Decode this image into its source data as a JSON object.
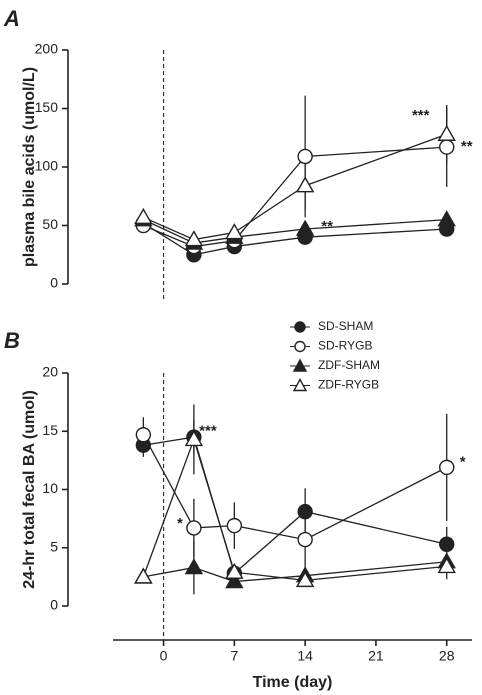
{
  "chart_data": [
    {
      "type": "line",
      "panel_label": "A",
      "y_label": "plasma bile acids (umol/L)",
      "x": [
        -2,
        3,
        7,
        14,
        28
      ],
      "xlim": [
        -5,
        30.5
      ],
      "ylim": [
        0,
        200
      ],
      "yticks": [
        0,
        50,
        100,
        150,
        200
      ],
      "series": [
        {
          "marker": "circle",
          "filled": true,
          "color": "#222",
          "values": [
            52,
            25,
            32,
            40,
            47
          ],
          "errors": [
            null,
            null,
            null,
            null,
            null
          ]
        },
        {
          "marker": "circle",
          "filled": false,
          "color": "#222",
          "values": [
            50,
            32,
            37,
            109,
            117
          ],
          "errors": [
            null,
            null,
            null,
            52,
            34
          ]
        },
        {
          "marker": "triangle",
          "filled": true,
          "color": "#222",
          "values": [
            55,
            35,
            40,
            47,
            55
          ],
          "errors": [
            null,
            null,
            null,
            null,
            null
          ]
        },
        {
          "marker": "triangle",
          "filled": false,
          "color": "#222",
          "values": [
            57,
            38,
            44,
            84,
            128
          ],
          "errors": [
            null,
            null,
            null,
            20,
            25
          ]
        }
      ],
      "annotations": [
        "**",
        "***",
        "**"
      ]
    },
    {
      "type": "line",
      "panel_label": "B",
      "y_label": "24-hr total fecal BA (umol)",
      "x_label": "Time (day)",
      "x": [
        -2,
        3,
        7,
        14,
        28
      ],
      "xlim": [
        -5,
        30.5
      ],
      "xticks": [
        0,
        7,
        14,
        21,
        28
      ],
      "ylim": [
        0,
        20
      ],
      "yticks": [
        0,
        5,
        10,
        15,
        20
      ],
      "series": [
        {
          "name": "SD-SHAM",
          "marker": "circle",
          "filled": true,
          "color": "#222",
          "values": [
            13.8,
            14.5,
            2.8,
            8.1,
            5.3
          ],
          "errors": [
            1.0,
            1.5,
            null,
            2.0,
            1.5
          ]
        },
        {
          "name": "SD-RYGB",
          "marker": "circle",
          "filled": false,
          "color": "#222",
          "values": [
            14.7,
            6.7,
            6.9,
            5.7,
            11.9
          ],
          "errors": [
            1.5,
            2.5,
            2.0,
            2.8,
            4.6
          ]
        },
        {
          "name": "ZDF-SHAM",
          "marker": "triangle",
          "filled": true,
          "color": "#222",
          "values": [
            2.5,
            3.3,
            2.1,
            2.6,
            3.8
          ],
          "errors": [
            null,
            2.3,
            null,
            null,
            1.5
          ]
        },
        {
          "name": "ZDF-RYGB",
          "marker": "triangle",
          "filled": false,
          "color": "#222",
          "values": [
            2.5,
            14.3,
            2.9,
            2.2,
            3.4
          ],
          "errors": [
            null,
            3.0,
            null,
            null,
            null
          ]
        }
      ],
      "annotations": [
        "***",
        "*",
        "*"
      ]
    }
  ]
}
